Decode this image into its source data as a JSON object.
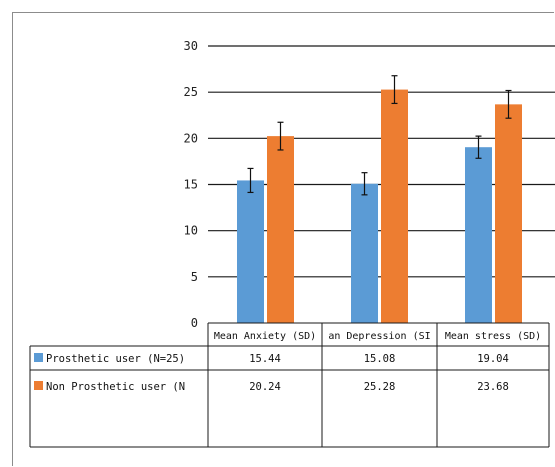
{
  "chart_data": {
    "type": "bar",
    "title": "",
    "xlabel": "",
    "ylabel": "",
    "ylim": [
      0,
      30
    ],
    "yticks": [
      0,
      5,
      10,
      15,
      20,
      25,
      30
    ],
    "grid": true,
    "legend": "data-table-left",
    "categories": [
      "Mean Anxiety (SD)",
      "Mean Depression (SD)",
      "Mean stress (SD)"
    ],
    "category_labels_visible": [
      "Mean Anxiety (SD)",
      "an Depression (SI",
      "Mean stress (SD)"
    ],
    "series": [
      {
        "name": "Prosthetic user (N=25)",
        "label_visible": "Prosthetic user (N=25)",
        "color": "#5b9bd5",
        "values": [
          15.44,
          15.08,
          19.04
        ],
        "value_labels": [
          "15.44",
          "15.08",
          "19.04"
        ],
        "error": [
          1.3,
          1.2,
          1.2
        ]
      },
      {
        "name": "Non Prosthetic user",
        "label_visible": "Non Prosthetic user (N",
        "color": "#ed7d31",
        "values": [
          20.24,
          25.28,
          23.68
        ],
        "value_labels": [
          "20.24",
          "25.28",
          "23.68"
        ],
        "error": [
          1.5,
          1.5,
          1.5
        ]
      }
    ]
  }
}
